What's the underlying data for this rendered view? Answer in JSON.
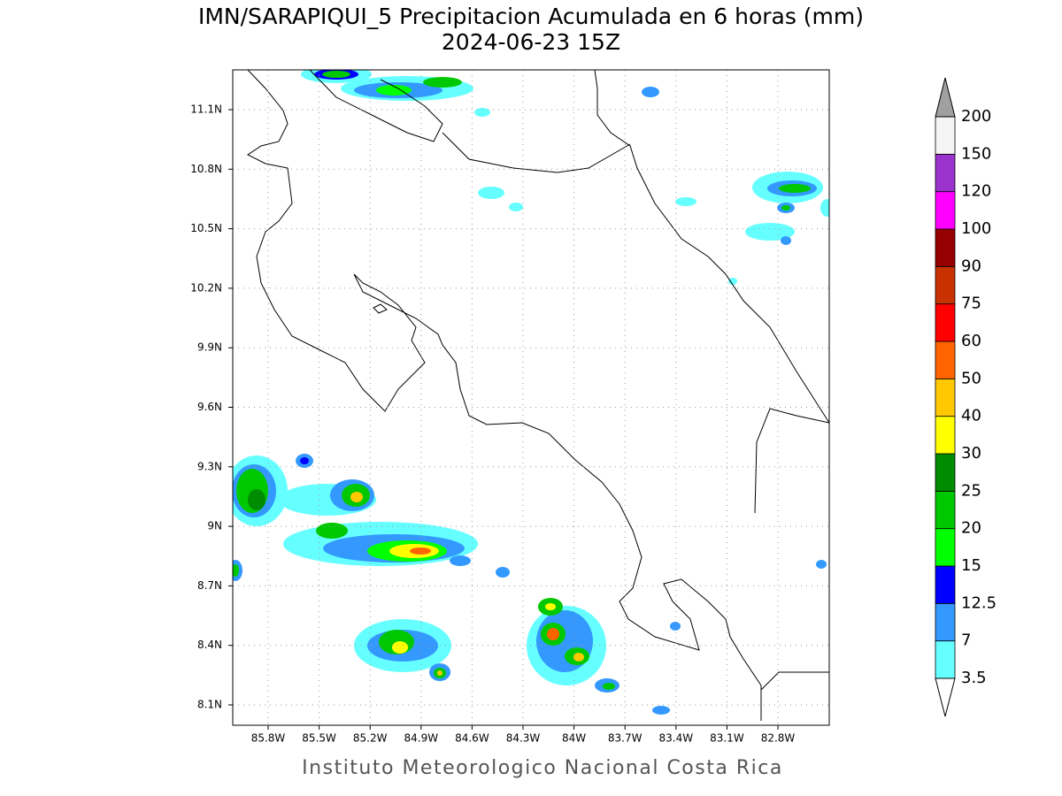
{
  "header": {
    "title": "IMN/SARAPIQUI_5 Precipitacion Acumulada en 6 horas (mm)",
    "subtitle": "2024-06-23 15Z"
  },
  "map": {
    "lat_labels": [
      "11.1N",
      "10.8N",
      "10.5N",
      "10.2N",
      "9.9N",
      "9.6N",
      "9.3N",
      "9N",
      "8.7N",
      "8.4N",
      "8.1N"
    ],
    "lon_labels": [
      "85.8W",
      "85.5W",
      "85.2W",
      "84.9W",
      "84.6W",
      "84.3W",
      "84W",
      "83.7W",
      "83.4W",
      "83.1W",
      "82.8W"
    ]
  },
  "legend": {
    "levels": [
      3.5,
      7,
      12.5,
      15,
      20,
      25,
      30,
      40,
      50,
      60,
      75,
      90,
      100,
      120,
      150,
      200
    ],
    "colors": [
      "#66ffff",
      "#3399ff",
      "#0000ff",
      "#00ff00",
      "#00c800",
      "#008c00",
      "#ffff00",
      "#ffc800",
      "#ff6400",
      "#ff0000",
      "#c83200",
      "#960000",
      "#ff00ff",
      "#9933cc",
      "#f5f5f5"
    ],
    "under_color": "#ffffff",
    "over_color": "#a0a0a0"
  },
  "footer": "Instituto Meteorologico Nacional Costa Rica"
}
